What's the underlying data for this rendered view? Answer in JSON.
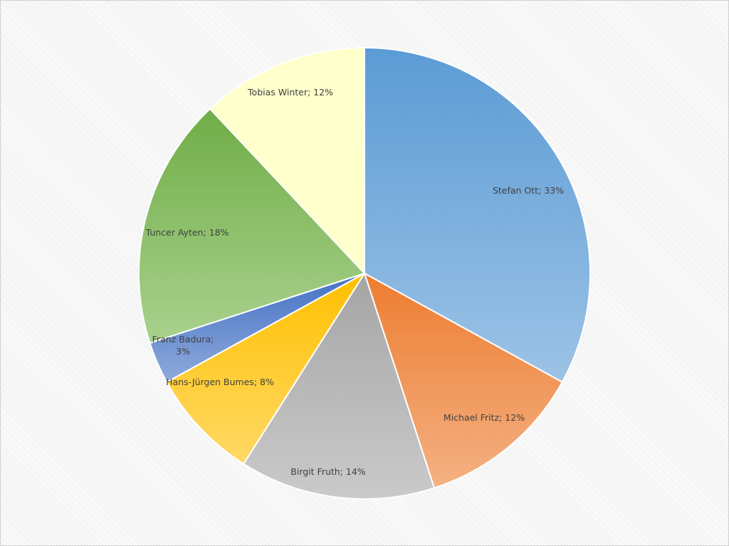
{
  "chart_data": {
    "type": "pie",
    "title": "",
    "start_angle": "12 o'clock",
    "direction": "clockwise",
    "slices": [
      {
        "label": "Stefan Ott",
        "value": 33,
        "text": "Stefan Ott; 33%",
        "color_top": "#5b9bd5",
        "color_bottom": "#9dc3e6"
      },
      {
        "label": "Michael Fritz",
        "value": 12,
        "text": "Michael Fritz; 12%",
        "color_top": "#ed7d31",
        "color_bottom": "#f4b183"
      },
      {
        "label": "Birgit Fruth",
        "value": 14,
        "text": "Birgit Fruth; 14%",
        "color_top": "#a5a5a5",
        "color_bottom": "#cacaca"
      },
      {
        "label": "Hans-Jürgen Bumes",
        "value": 8,
        "text": "Hans-Jürgen Bumes; 8%",
        "color_top": "#ffc000",
        "color_bottom": "#ffd966"
      },
      {
        "label": "Franz Badura",
        "value": 3,
        "text": "Franz Badura;",
        "text2": "3%",
        "color_top": "#4472c4",
        "color_bottom": "#8faadc"
      },
      {
        "label": "Tuncer Ayten",
        "value": 18,
        "text": "Tuncer Ayten; 18%",
        "color_top": "#70ad47",
        "color_bottom": "#a9d18e"
      },
      {
        "label": "Tobias Winter",
        "value": 12,
        "text": "Tobias Winter; 12%",
        "color_top": "#ffffcc",
        "color_bottom": "#ffffcc"
      }
    ]
  }
}
